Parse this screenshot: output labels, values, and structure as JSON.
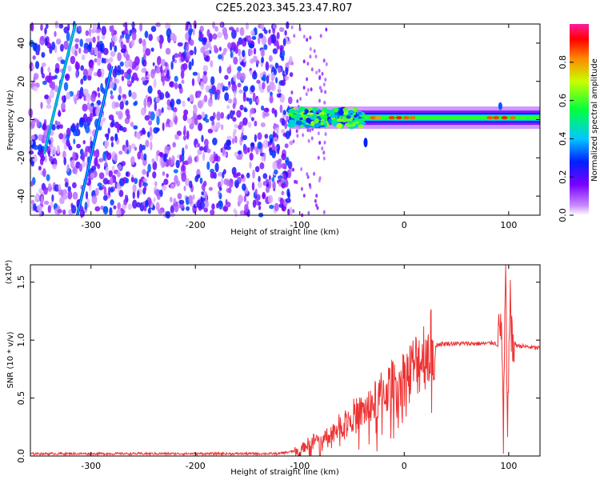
{
  "title": "C2E5.2023.345.23.47.R07",
  "chart_data": [
    {
      "type": "heatmap",
      "title": "C2E5.2023.345.23.47.R07",
      "xlabel": "Height of straight line (km)",
      "ylabel": "Frequency (Hz)",
      "xlim": [
        -358,
        130
      ],
      "ylim": [
        -50,
        50
      ],
      "xticks": [
        -300,
        -200,
        -100,
        0,
        100
      ],
      "yticks": [
        -40,
        -20,
        0,
        20,
        40
      ],
      "colorbar": {
        "label": "Normalized spectral amplitude",
        "range": [
          0.0,
          1.0
        ],
        "ticks": [
          "0.0",
          "0.2",
          "0.4",
          "0.6",
          "0.8"
        ],
        "tick_values": [
          0.0,
          0.2,
          0.4,
          0.6,
          0.8
        ],
        "colormap": "rainbow (white→purple→blue→cyan→green→yellow→red→magenta)"
      },
      "features": [
        {
          "name": "broadband-noise",
          "x_range": [
            -358,
            -108
          ],
          "y_range": [
            -50,
            50
          ],
          "amplitude": 0.15
        },
        {
          "name": "diagonal-streak",
          "x_start": -345,
          "y_start": -18,
          "x_end": -315,
          "y_end": 50,
          "amplitude": 0.35
        },
        {
          "name": "diagonal-streak",
          "x_start": -313,
          "y_start": -50,
          "x_end": -280,
          "y_end": 28,
          "amplitude": 0.3
        },
        {
          "name": "main-doppler-band",
          "x_range": [
            -110,
            130
          ],
          "center_hz": 1,
          "width_hz": 5,
          "amplitude": 0.8
        }
      ]
    },
    {
      "type": "line",
      "xlabel": "Height of straight line (km)",
      "ylabel": "SNR (10 * v/v)",
      "y_multiplier": "(x10⁴)",
      "xlim": [
        -358,
        130
      ],
      "ylim": [
        0.0,
        1.65
      ],
      "xticks": [
        -300,
        -200,
        -100,
        0,
        100
      ],
      "yticks": [
        0.0,
        0.5,
        1.0,
        1.5
      ],
      "ytick_labels": [
        "0.0",
        "0.5",
        "1.0",
        "1.5"
      ],
      "color": "#ee3333",
      "series": [
        {
          "x": [
            -358,
            -300,
            -200,
            -120,
            -100,
            -90,
            -80,
            -70,
            -60,
            -50,
            -40,
            -30,
            -20,
            -10,
            0,
            10,
            20,
            30,
            40,
            50,
            60,
            70,
            80,
            85,
            90,
            93,
            95,
            97,
            99,
            101,
            103,
            106,
            110,
            120,
            130
          ],
          "y": [
            0.02,
            0.02,
            0.02,
            0.02,
            0.05,
            0.12,
            0.15,
            0.2,
            0.27,
            0.35,
            0.38,
            0.45,
            0.55,
            0.62,
            0.68,
            0.78,
            0.9,
            0.96,
            0.97,
            0.97,
            0.97,
            0.97,
            0.97,
            0.98,
            0.96,
            1.2,
            0.1,
            1.65,
            0.02,
            1.5,
            0.95,
            0.96,
            0.95,
            0.94,
            0.93
          ]
        }
      ]
    }
  ]
}
